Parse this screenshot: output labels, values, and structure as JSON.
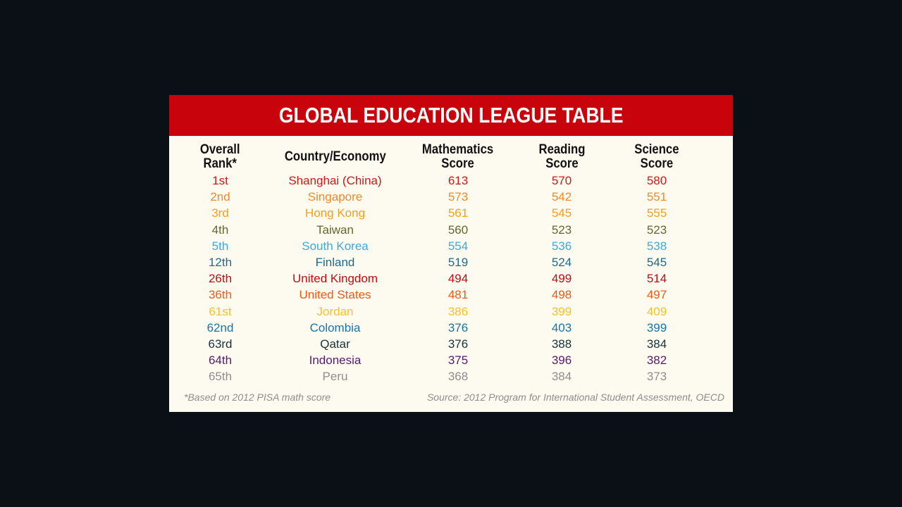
{
  "title": "GLOBAL EDUCATION LEAGUE TABLE",
  "footnote": "*Based on 2012 PISA math score",
  "source": "Source: 2012 Program for International Student Assessment, OECD",
  "colors": {
    "background": "#0a1016",
    "card": "#fdfaf0",
    "title_bar": "#c8030b",
    "footer_text": "#8c8c8c"
  },
  "chart_data": {
    "type": "table",
    "title": "GLOBAL EDUCATION LEAGUE TABLE",
    "columns": [
      {
        "line1": "Overall",
        "line2": "Rank*"
      },
      {
        "line1": "Country/Economy",
        "line2": ""
      },
      {
        "line1": "Mathematics",
        "line2": "Score"
      },
      {
        "line1": "Reading",
        "line2": "Score"
      },
      {
        "line1": "Science",
        "line2": "Score"
      }
    ],
    "rows": [
      {
        "rank": "1st",
        "country": "Shanghai (China)",
        "math": "613",
        "reading": "570",
        "science": "580",
        "color": "#d01818"
      },
      {
        "rank": "2nd",
        "country": "Singapore",
        "math": "573",
        "reading": "542",
        "science": "551",
        "color": "#f08a2a"
      },
      {
        "rank": "3rd",
        "country": "Hong Kong",
        "math": "561",
        "reading": "545",
        "science": "555",
        "color": "#f0a21e"
      },
      {
        "rank": "4th",
        "country": "Taiwan",
        "math": "560",
        "reading": "523",
        "science": "523",
        "color": "#5e6a2c"
      },
      {
        "rank": "5th",
        "country": "South Korea",
        "math": "554",
        "reading": "536",
        "science": "538",
        "color": "#3ea9dc"
      },
      {
        "rank": "12th",
        "country": "Finland",
        "math": "519",
        "reading": "524",
        "science": "545",
        "color": "#1d6a8a"
      },
      {
        "rank": "26th",
        "country": "United Kingdom",
        "math": "494",
        "reading": "499",
        "science": "514",
        "color": "#c20c12"
      },
      {
        "rank": "36th",
        "country": "United States",
        "math": "481",
        "reading": "498",
        "science": "497",
        "color": "#f05a16"
      },
      {
        "rank": "61st",
        "country": "Jordan",
        "math": "386",
        "reading": "399",
        "science": "409",
        "color": "#f6c12e"
      },
      {
        "rank": "62nd",
        "country": "Colombia",
        "math": "376",
        "reading": "403",
        "science": "399",
        "color": "#1a73a6"
      },
      {
        "rank": "63rd",
        "country": "Qatar",
        "math": "376",
        "reading": "388",
        "science": "384",
        "color": "#17333a"
      },
      {
        "rank": "64th",
        "country": "Indonesia",
        "math": "375",
        "reading": "396",
        "science": "382",
        "color": "#5a1a6a"
      },
      {
        "rank": "65th",
        "country": "Peru",
        "math": "368",
        "reading": "384",
        "science": "373",
        "color": "#8e8e8e"
      }
    ]
  }
}
